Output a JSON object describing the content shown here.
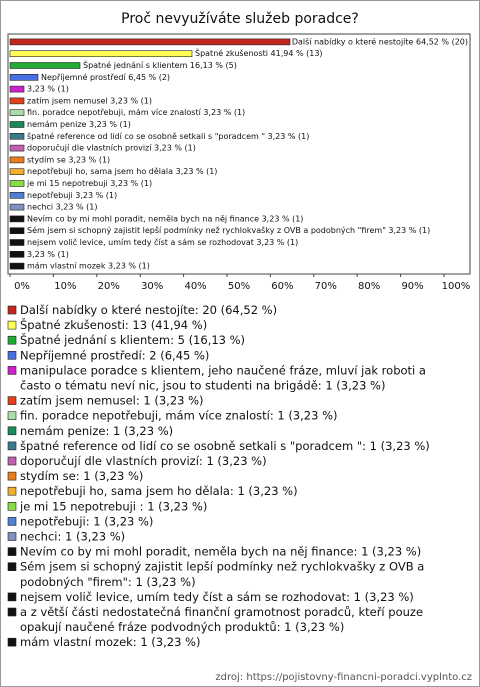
{
  "chart_data": {
    "type": "bar",
    "orientation": "horizontal",
    "title": "Proč nevyužíváte služeb poradce?",
    "values": [
      64.52,
      41.94,
      16.13,
      6.45,
      3.23,
      3.23,
      3.23,
      3.23,
      3.23,
      3.23,
      3.23,
      3.23,
      3.23,
      3.23,
      3.23,
      3.23,
      3.23,
      3.23,
      3.23,
      3.23
    ],
    "value_labels": [
      "Další nabídky o které nestojíte 64,52 % (20)",
      "Špatné zkušenosti 41,94 % (13)",
      "Špatné jednání s klientem 16,13 % (5)",
      "Nepříjemné prostředí 6,45 % (2)",
      "3,23 % (1)",
      "zatím jsem nemusel 3,23 % (1)",
      "fin. poradce nepotřebuji, mám více znalostí 3,23 % (1)",
      "nemám penize 3,23 % (1)",
      "špatné reference od lidí co se osobně setkali s \"poradcem \" 3,23 % (1)",
      "doporučují dle vlastních provizí 3,23 % (1)",
      "stydím se 3,23 % (1)",
      "nepotřebuji ho, sama jsem ho dělala 3,23 % (1)",
      "je mi 15 nepotrebuji  3,23 % (1)",
      "nepotřebuji 3,23 % (1)",
      "nechci 3,23 % (1)",
      "Nevím co by mi mohl poradit, neměla bych na něj finance 3,23 % (1)",
      "Sém jsem si schopný zajistit lepší podmínky než rychlokvašky z OVB a podobných \"firem\" 3,23 % (1)",
      "nejsem volič levice, umím tedy číst a sám se rozhodovat 3,23 % (1)",
      "3,23 % (1)",
      "mám vlastní mozek 3,23 % (1)"
    ],
    "colors": [
      "#c0281e",
      "#ffff55",
      "#22aa33",
      "#4a6ee0",
      "#cc22cc",
      "#e0401a",
      "#aaddaa",
      "#1a8a5a",
      "#3a7a8a",
      "#c060b0",
      "#e87a20",
      "#f0b030",
      "#88dd44",
      "#5080d0",
      "#8090c0",
      "#111111",
      "#111111",
      "#111111",
      "#111111",
      "#111111"
    ],
    "legend": [
      "Další nabídky o které nestojíte: 20 (64,52 %)",
      "Špatné zkušenosti: 13 (41,94 %)",
      "Špatné jednání s klientem: 5 (16,13 %)",
      "Nepříjemné prostředí: 2 (6,45 %)",
      "manipulace poradce s klientem, jeho naučené fráze, mluví jak roboti a často o tématu neví nic, jsou to studenti na brigádě: 1 (3,23 %)",
      "zatím jsem nemusel: 1 (3,23 %)",
      "fin. poradce nepotřebuji, mám více znalostí: 1 (3,23 %)",
      "nemám penize: 1 (3,23 %)",
      "špatné reference od lidí co se osobně setkali s \"poradcem \": 1 (3,23 %)",
      "doporučují dle vlastních provizí: 1 (3,23 %)",
      "stydím se: 1 (3,23 %)",
      "nepotřebuji ho, sama jsem ho dělala: 1 (3,23 %)",
      "je mi 15 nepotrebuji : 1 (3,23 %)",
      "nepotřebuji: 1 (3,23 %)",
      "nechci: 1 (3,23 %)",
      "Nevím co by mi mohl poradit, neměla bych na něj finance: 1 (3,23 %)",
      "Sém jsem si schopný zajistit lepší podmínky než rychlokvašky z OVB a podobných \"firem\": 1 (3,23 %)",
      "nejsem volič levice, umím tedy číst a sám se rozhodovat: 1 (3,23 %)",
      "a z větší části nedostatečná finanční gramotnost poradců, kteří pouze opakují naučené fráze podvodných produktů: 1 (3,23 %)",
      "mám vlastní mozek: 1 (3,23 %)"
    ],
    "xlim": [
      0,
      106
    ],
    "xticks": [
      {
        "value": 0,
        "label": "0%"
      },
      {
        "value": 10,
        "label": "10%"
      },
      {
        "value": 20,
        "label": "20%"
      },
      {
        "value": 30,
        "label": "30%"
      },
      {
        "value": 40,
        "label": "40%"
      },
      {
        "value": 50,
        "label": "50%"
      },
      {
        "value": 60,
        "label": "60%"
      },
      {
        "value": 70,
        "label": "70%"
      },
      {
        "value": 80,
        "label": "80%"
      },
      {
        "value": 90,
        "label": "90%"
      },
      {
        "value": 100,
        "label": "100%"
      }
    ],
    "source": "zdroj: https://pojistovny-financni-poradci.vyplnto.cz"
  }
}
